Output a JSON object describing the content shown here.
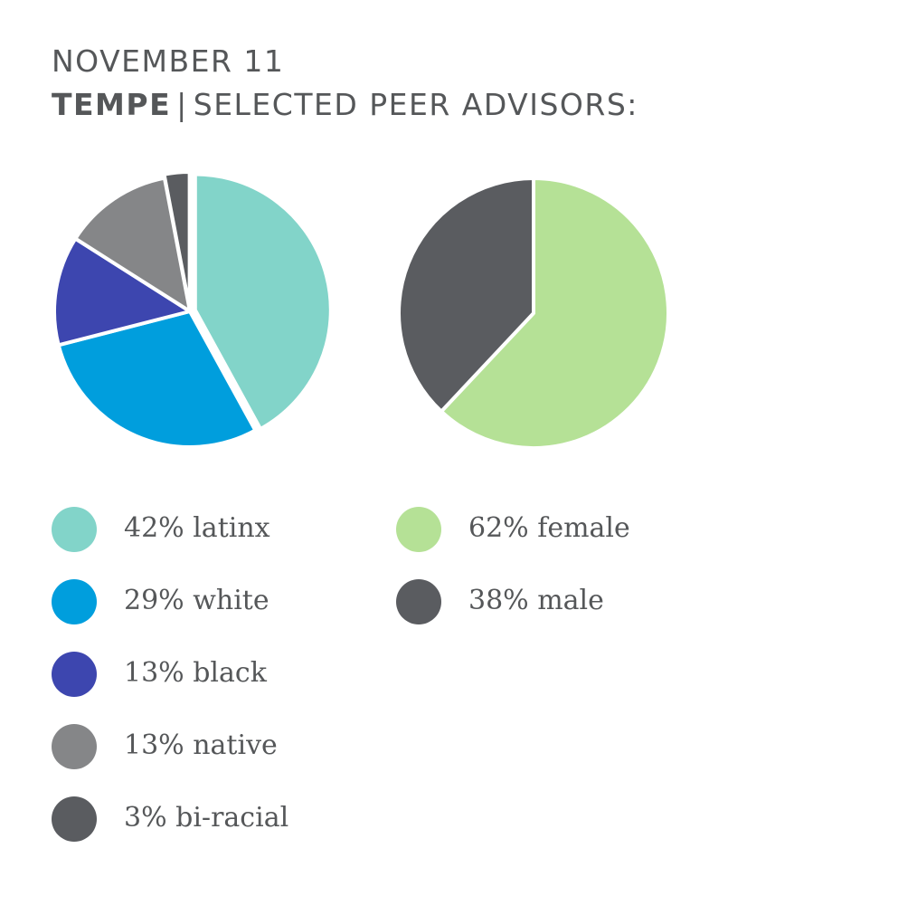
{
  "header": {
    "date": "NOVEMBER 11",
    "location": "TEMPE",
    "separator": "|",
    "subtitle": "SELECTED PEER ADVISORS:"
  },
  "chart_data": [
    {
      "type": "pie",
      "slices": [
        {
          "label": "42% latinx",
          "value": 42,
          "color": "#82d4c9"
        },
        {
          "label": "29% white",
          "value": 29,
          "color": "#009edd"
        },
        {
          "label": "13% black",
          "value": 13,
          "color": "#3d46af"
        },
        {
          "label": "13% native",
          "value": 13,
          "color": "#858688"
        },
        {
          "label": "3% bi-racial",
          "value": 3,
          "color": "#5a5c60"
        }
      ]
    },
    {
      "type": "pie",
      "slices": [
        {
          "label": "62% female",
          "value": 62,
          "color": "#b5e196"
        },
        {
          "label": "38% male",
          "value": 38,
          "color": "#5a5c60"
        }
      ]
    }
  ]
}
